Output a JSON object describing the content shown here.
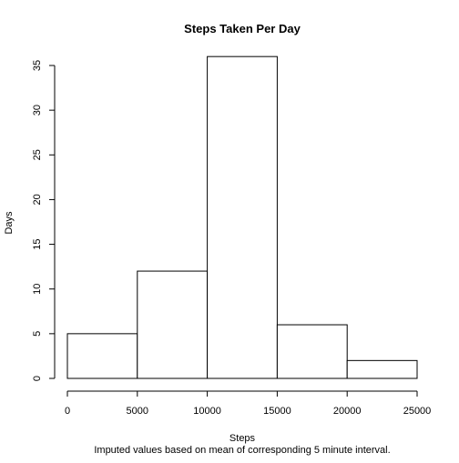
{
  "chart_data": {
    "type": "bar",
    "title": "Steps Taken Per Day",
    "xlabel": "Steps",
    "ylabel": "Days",
    "subtitle": "Imputed values based on mean of corresponding 5 minute interval.",
    "bins": [
      {
        "from": 0,
        "to": 5000,
        "count": 5
      },
      {
        "from": 5000,
        "to": 10000,
        "count": 12
      },
      {
        "from": 10000,
        "to": 15000,
        "count": 36
      },
      {
        "from": 15000,
        "to": 20000,
        "count": 6
      },
      {
        "from": 20000,
        "to": 25000,
        "count": 2
      }
    ],
    "xlim": [
      0,
      25000
    ],
    "ylim": [
      0,
      35
    ],
    "x_ticks": [
      0,
      5000,
      10000,
      15000,
      20000,
      25000
    ],
    "x_tick_labels": [
      "0",
      "5000",
      "10000",
      "15000",
      "20000",
      "25000"
    ],
    "y_ticks": [
      0,
      5,
      10,
      15,
      20,
      25,
      30,
      35
    ],
    "y_tick_labels": [
      "0",
      "5",
      "10",
      "15",
      "20",
      "25",
      "30",
      "35"
    ],
    "grid": false,
    "legend": "none",
    "colors": {
      "bar_fill": "#ffffff",
      "bar_stroke": "#000000",
      "axis": "#000000",
      "background": "#ffffff"
    }
  }
}
